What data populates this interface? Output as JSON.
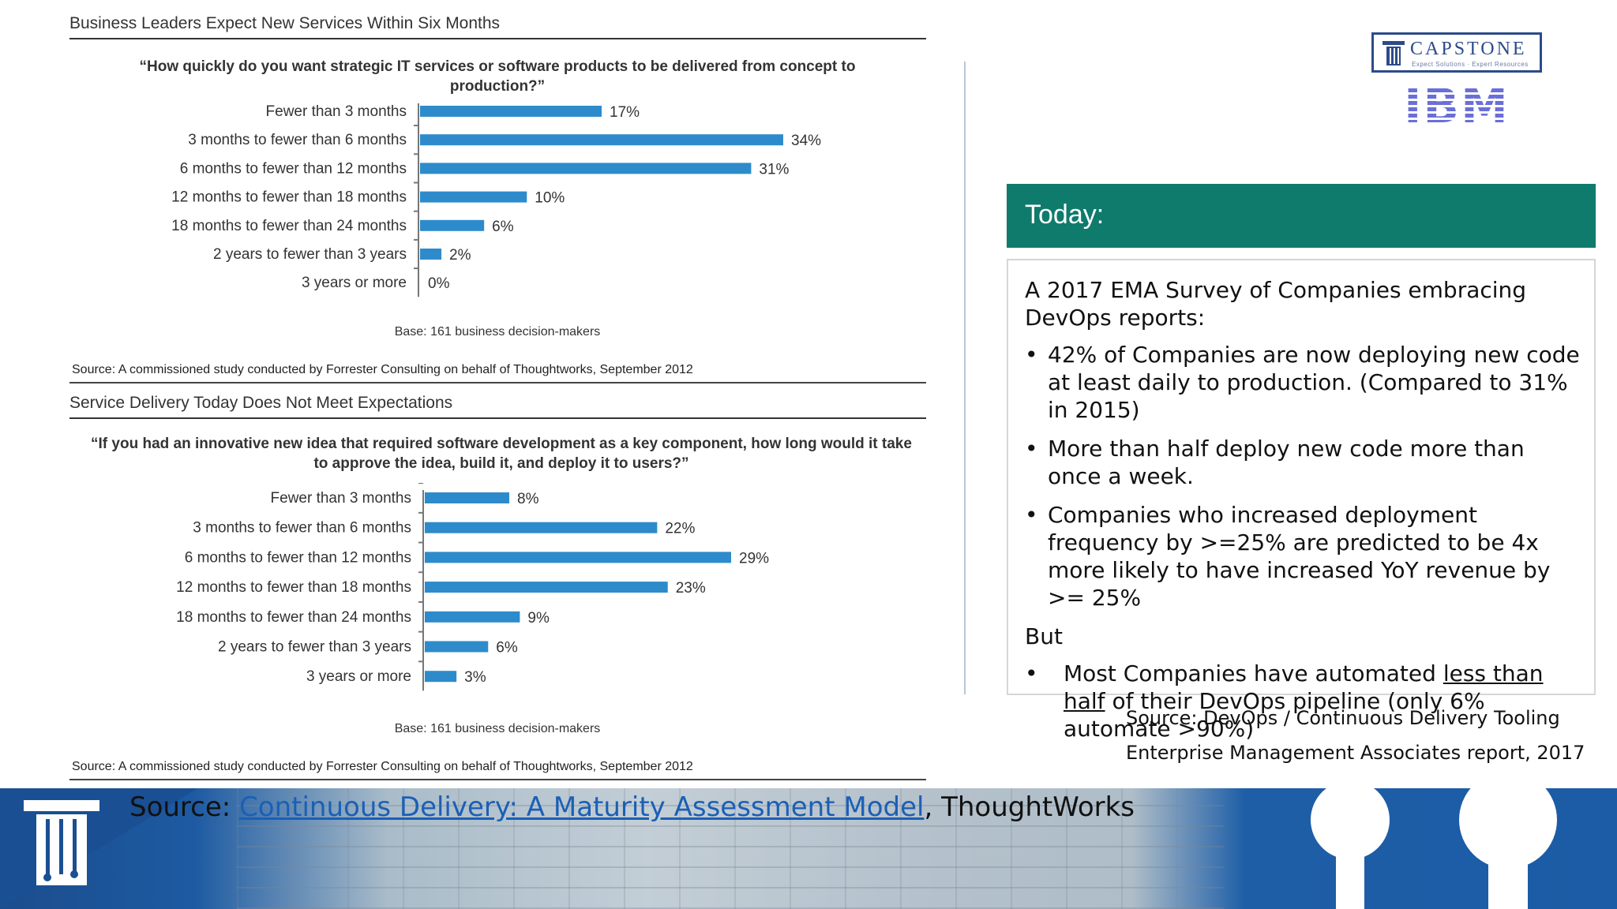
{
  "chart_data": [
    {
      "type": "bar",
      "orientation": "horizontal",
      "panel_title": "Business Leaders Expect New Services Within Six Months",
      "title": "“How quickly do you want strategic IT services or software products to be delivered from concept to production?”",
      "categories": [
        "Fewer than 3 months",
        "3 months to fewer than 6 months",
        "6 months to fewer than 12 months",
        "12 months to fewer than 18 months",
        "18 months to fewer than 24 months",
        "2 years to fewer than 3 years",
        "3 years or more"
      ],
      "values": [
        17,
        34,
        31,
        10,
        6,
        2,
        0
      ],
      "value_labels": [
        "17%",
        "34%",
        "31%",
        "10%",
        "6%",
        "2%",
        "0%"
      ],
      "unit": "%",
      "xlim": [
        0,
        34
      ],
      "color": "#2e8bcb",
      "grid": false,
      "base": "Base: 161 business decision-makers",
      "source": "Source: A commissioned study conducted by Forrester Consulting on behalf of Thoughtworks, September 2012"
    },
    {
      "type": "bar",
      "orientation": "horizontal",
      "panel_title": "Service Delivery Today Does Not Meet Expectations",
      "title": "“If you had an innovative new idea that required software development as a key component, how long would it take to approve the idea, build it, and deploy it to users?”",
      "categories": [
        "Fewer than 3 months",
        "3 months to fewer than 6 months",
        "6 months to fewer than 12 months",
        "12 months to fewer than 18 months",
        "18 months to fewer than 24 months",
        "2 years to fewer than 3 years",
        "3 years or more"
      ],
      "values": [
        8,
        22,
        29,
        23,
        9,
        6,
        3
      ],
      "value_labels": [
        "8%",
        "22%",
        "29%",
        "23%",
        "9%",
        "6%",
        "3%"
      ],
      "unit": "%",
      "xlim": [
        0,
        29
      ],
      "color": "#2e8bcb",
      "grid": false,
      "base": "Base: 161 business decision-makers",
      "source": "Source: A commissioned study conducted by Forrester Consulting on behalf of Thoughtworks, September 2012"
    }
  ],
  "logos": {
    "capstone_name": "CAPSTONE",
    "capstone_tagline": "Expect Solutions · Expert Resources",
    "ibm": "IBM",
    "brand_color": "#2c4b8a",
    "ibm_color": "#6a6fd8"
  },
  "today": {
    "heading": "Today:",
    "heading_bg": "#0f7b6c",
    "intro": "A 2017 EMA Survey of Companies embracing DevOps reports:",
    "bullets": [
      "42% of Companies are now deploying new code at least daily to production. (Compared to 31% in 2015)",
      "More than half deploy new code more than once a week.",
      "Companies who increased deployment frequency by >=25% are predicted to be 4x more likely to have increased YoY revenue by >= 25%"
    ],
    "but": "But",
    "last_bullet_pre": "Most Companies have automated ",
    "last_bullet_underlined": "less than half",
    "last_bullet_post": " of their DevOps pipeline (only 6% automate >90%)",
    "source_line1": "Source: DevOps / Continuous Delivery Tooling",
    "source_line2": "Enterprise Management Associates report, 2017"
  },
  "footer": {
    "prefix": "Source: ",
    "link_text": "Continuous Delivery: A Maturity Assessment Model",
    "suffix": ", ThoughtWorks"
  }
}
